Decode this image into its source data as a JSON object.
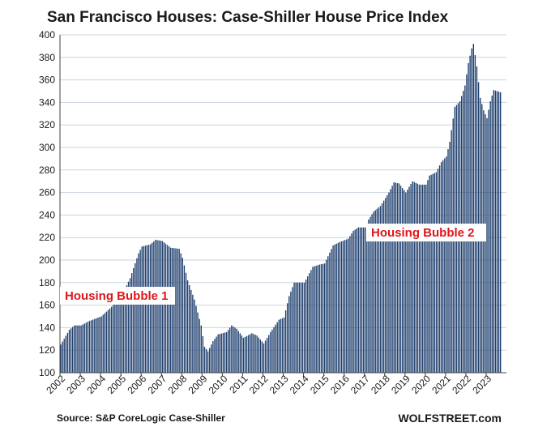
{
  "chart_data": {
    "type": "bar",
    "title": "San Francisco Houses: Case-Shiller House Price Index",
    "xlabel": "",
    "ylabel": "",
    "ylim": [
      100,
      400
    ],
    "yticks": [
      100,
      120,
      140,
      160,
      180,
      200,
      220,
      240,
      260,
      280,
      300,
      320,
      340,
      360,
      380,
      400
    ],
    "x_tick_labels": [
      "2002",
      "2003",
      "2004",
      "2005",
      "2006",
      "2007",
      "2008",
      "2009",
      "2010",
      "2011",
      "2012",
      "2013",
      "2014",
      "2015",
      "2016",
      "2017",
      "2018",
      "2019",
      "2020",
      "2021",
      "2022",
      "2023"
    ],
    "grid": true,
    "bar_color": "#1f3f6e",
    "anchors": [
      [
        "2002-01",
        125
      ],
      [
        "2002-06",
        138
      ],
      [
        "2002-09",
        142
      ],
      [
        "2003-01",
        142
      ],
      [
        "2003-06",
        146
      ],
      [
        "2004-01",
        150
      ],
      [
        "2004-06",
        157
      ],
      [
        "2005-01",
        168
      ],
      [
        "2005-06",
        184
      ],
      [
        "2005-11",
        206
      ],
      [
        "2006-01",
        212
      ],
      [
        "2006-06",
        214
      ],
      [
        "2006-09",
        218
      ],
      [
        "2007-01",
        217
      ],
      [
        "2007-06",
        211
      ],
      [
        "2007-11",
        210
      ],
      [
        "2008-01",
        202
      ],
      [
        "2008-04",
        182
      ],
      [
        "2008-08",
        165
      ],
      [
        "2008-12",
        142
      ],
      [
        "2009-02",
        123
      ],
      [
        "2009-04",
        119
      ],
      [
        "2009-07",
        128
      ],
      [
        "2009-10",
        134
      ],
      [
        "2010-03",
        136
      ],
      [
        "2010-06",
        142
      ],
      [
        "2010-09",
        139
      ],
      [
        "2011-01",
        131
      ],
      [
        "2011-06",
        135
      ],
      [
        "2011-09",
        133
      ],
      [
        "2012-01",
        126
      ],
      [
        "2012-05",
        136
      ],
      [
        "2012-10",
        147
      ],
      [
        "2013-01",
        149
      ],
      [
        "2013-04",
        168
      ],
      [
        "2013-07",
        180
      ],
      [
        "2014-01",
        180
      ],
      [
        "2014-06",
        194
      ],
      [
        "2014-10",
        196
      ],
      [
        "2015-01",
        197
      ],
      [
        "2015-06",
        213
      ],
      [
        "2015-10",
        216
      ],
      [
        "2016-03",
        219
      ],
      [
        "2016-06",
        226
      ],
      [
        "2016-09",
        229
      ],
      [
        "2017-01",
        229
      ],
      [
        "2017-03",
        236
      ],
      [
        "2017-06",
        243
      ],
      [
        "2017-10",
        248
      ],
      [
        "2018-03",
        260
      ],
      [
        "2018-06",
        269
      ],
      [
        "2018-09",
        268
      ],
      [
        "2019-01",
        260
      ],
      [
        "2019-05",
        270
      ],
      [
        "2019-09",
        267
      ],
      [
        "2020-01",
        267
      ],
      [
        "2020-03",
        275
      ],
      [
        "2020-07",
        278
      ],
      [
        "2020-10",
        287
      ],
      [
        "2021-01",
        292
      ],
      [
        "2021-03",
        305
      ],
      [
        "2021-06",
        336
      ],
      [
        "2021-09",
        341
      ],
      [
        "2021-12",
        355
      ],
      [
        "2022-02",
        375
      ],
      [
        "2022-04",
        388
      ],
      [
        "2022-05",
        392
      ],
      [
        "2022-07",
        372
      ],
      [
        "2022-09",
        344
      ],
      [
        "2022-11",
        333
      ],
      [
        "2023-01",
        326
      ],
      [
        "2023-03",
        341
      ],
      [
        "2023-05",
        351
      ],
      [
        "2023-07",
        350
      ],
      [
        "2023-09",
        349
      ]
    ]
  },
  "annotations": {
    "bubble1": "Housing Bubble 1",
    "bubble2": "Housing Bubble 2"
  },
  "footer": {
    "source": "Source: S&P CoreLogic Case-Shiller",
    "brand": "WOLFSTREET.com"
  },
  "colors": {
    "bar": "#1f3f6e",
    "annotation": "#e0161b",
    "grid": "#c9d3df"
  }
}
